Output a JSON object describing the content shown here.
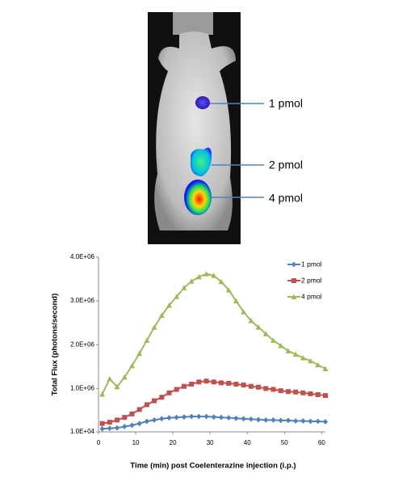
{
  "image": {
    "labels": [
      "1 pmol",
      "2 pmol",
      "4 pmol"
    ]
  },
  "chart_data": {
    "type": "line",
    "x_label": "Time (min) post Coelenterazine injection (i.p.)",
    "y_label": "Total Flux (photons/second)",
    "x": [
      1,
      3,
      5,
      7,
      9,
      11,
      13,
      15,
      17,
      19,
      21,
      23,
      25,
      27,
      29,
      31,
      33,
      35,
      37,
      39,
      41,
      43,
      45,
      47,
      49,
      51,
      53,
      55,
      57,
      59,
      61
    ],
    "xlim": [
      0,
      61
    ],
    "xticks": [
      0,
      10,
      20,
      30,
      40,
      50,
      60
    ],
    "ylim": [
      10000,
      4000000
    ],
    "yticks": [
      {
        "value": 10000,
        "label": "1.0E+04"
      },
      {
        "value": 1000000,
        "label": "1.0E+06"
      },
      {
        "value": 2000000,
        "label": "2.0E+06"
      },
      {
        "value": 3000000,
        "label": "3.0E+06"
      },
      {
        "value": 4000000,
        "label": "4.0E+06"
      }
    ],
    "legend": "top-right",
    "grid": false,
    "series": [
      {
        "name": "1 pmol",
        "color": "#4f81bd",
        "marker": "diamond",
        "values": [
          80000,
          90000,
          100000,
          130000,
          160000,
          200000,
          250000,
          280000,
          310000,
          330000,
          340000,
          350000,
          360000,
          360000,
          360000,
          350000,
          340000,
          330000,
          320000,
          310000,
          300000,
          290000,
          280000,
          280000,
          270000,
          270000,
          260000,
          260000,
          250000,
          250000,
          240000
        ]
      },
      {
        "name": "2 pmol",
        "color": "#c0504d",
        "marker": "square",
        "values": [
          200000,
          230000,
          280000,
          340000,
          420000,
          520000,
          630000,
          720000,
          800000,
          900000,
          980000,
          1050000,
          1100000,
          1150000,
          1170000,
          1150000,
          1130000,
          1120000,
          1100000,
          1080000,
          1050000,
          1030000,
          1000000,
          980000,
          950000,
          930000,
          920000,
          900000,
          880000,
          860000,
          840000
        ]
      },
      {
        "name": "4 pmol",
        "color": "#9bbb59",
        "marker": "triangle",
        "values": [
          870000,
          1220000,
          1040000,
          1260000,
          1520000,
          1800000,
          2100000,
          2400000,
          2670000,
          2900000,
          3100000,
          3300000,
          3450000,
          3550000,
          3620000,
          3580000,
          3440000,
          3250000,
          3000000,
          2750000,
          2550000,
          2400000,
          2250000,
          2100000,
          1980000,
          1860000,
          1780000,
          1700000,
          1630000,
          1540000,
          1450000
        ]
      }
    ]
  }
}
